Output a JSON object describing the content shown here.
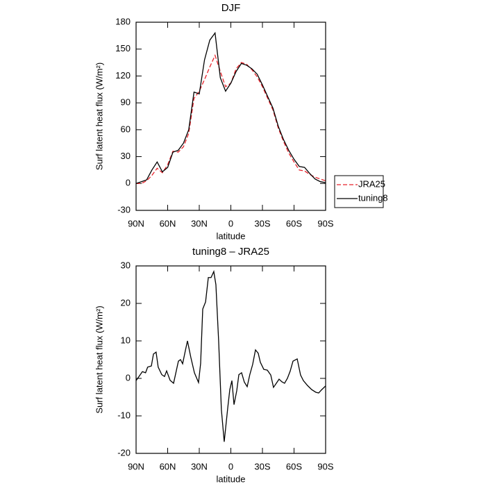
{
  "chart_data": [
    {
      "type": "line",
      "title": "DJF",
      "x_label": "latitude",
      "y_label": "Surf latent heat flux (W/m²)",
      "x": [
        90,
        85,
        80,
        75,
        70,
        65,
        60,
        55,
        50,
        45,
        40,
        35,
        30,
        25,
        20,
        15,
        10,
        5,
        0,
        -5,
        -10,
        -15,
        -20,
        -25,
        -30,
        -35,
        -40,
        -45,
        -50,
        -55,
        -60,
        -65,
        -70,
        -75,
        -80,
        -85,
        -90
      ],
      "series": [
        {
          "name": "JRA25",
          "color": "#e8222a",
          "line_style": "dashed",
          "values": [
            0,
            0,
            3,
            9,
            17,
            12,
            21,
            36,
            35,
            41,
            56,
            95,
            103,
            116,
            130,
            143,
            125,
            108,
            112,
            128,
            135,
            133,
            127,
            119,
            108,
            95,
            82,
            62,
            47,
            34,
            24,
            15,
            14,
            10,
            7,
            5,
            3
          ]
        },
        {
          "name": "tuning8",
          "color": "#000000",
          "line_style": "solid",
          "values": [
            0,
            2,
            4,
            15,
            24,
            13,
            18,
            35,
            37,
            45,
            60,
            102,
            100,
            138,
            160,
            168,
            118,
            103,
            112,
            125,
            134,
            132,
            128,
            122,
            110,
            97,
            84,
            64,
            49,
            37,
            27,
            19,
            18,
            11,
            5,
            2,
            1
          ]
        }
      ],
      "xlim": [
        90,
        -90
      ],
      "xticks": [
        {
          "value": 90,
          "label": "90N"
        },
        {
          "value": 60,
          "label": "60N"
        },
        {
          "value": 30,
          "label": "30N"
        },
        0,
        {
          "value": -30,
          "label": "30S"
        },
        {
          "value": -60,
          "label": "60S"
        },
        {
          "value": -90,
          "label": "90S"
        }
      ],
      "ylim": [
        -30,
        180
      ],
      "yticks": [
        -30,
        0,
        30,
        60,
        90,
        120,
        150,
        180
      ],
      "legend": "right"
    },
    {
      "type": "line",
      "title": "tuning8 – JRA25",
      "x_label": "latitude",
      "y_label": "Surf latent heat flux (W/m²)",
      "x": [
        90,
        84,
        81,
        79,
        75.5,
        73.5,
        71,
        69,
        65.6,
        63,
        61,
        57.7,
        54.4,
        49.8,
        47.8,
        45.8,
        43.2,
        41.2,
        38,
        34.6,
        30.7,
        28.7,
        26.7,
        24,
        21.4,
        18.8,
        16.2,
        14.2,
        11.6,
        9,
        6.3,
        3,
        1,
        -1,
        -3,
        -5.6,
        -7.6,
        -10.2,
        -12.8,
        -15.5,
        -18,
        -20.7,
        -23.4,
        -26,
        -28,
        -31.3,
        -34.6,
        -37.9,
        -40.5,
        -43.2,
        -45.8,
        -48.4,
        -51,
        -53.7,
        -56.3,
        -59,
        -63,
        -66.2,
        -68.9,
        -72.8,
        -76.8,
        -80.7,
        -83.4,
        -86,
        -90
      ],
      "series": [
        {
          "name": "tuning8 – JRA25",
          "color": "#000000",
          "line_style": "solid",
          "values": [
            -0.6,
            1.8,
            1.5,
            3,
            3.3,
            6.5,
            7,
            3,
            1,
            0.5,
            2,
            -0.5,
            -1.3,
            4.6,
            5,
            3.9,
            7.4,
            10,
            5.6,
            1.5,
            -1.1,
            4,
            18.5,
            20.4,
            26.9,
            26.9,
            28.5,
            25,
            10,
            -8.3,
            -16.9,
            -8,
            -3,
            -0.6,
            -7,
            -3.3,
            1,
            1.5,
            -1,
            -2.2,
            1,
            3.7,
            7.6,
            6.7,
            4.3,
            2.4,
            2.2,
            0.9,
            -2.4,
            -1.3,
            -0.2,
            -0.9,
            -1.3,
            0,
            1.9,
            4.6,
            5.2,
            0.9,
            -0.6,
            -1.9,
            -3,
            -3.7,
            -3.9,
            -3.1,
            -2
          ]
        }
      ],
      "xlim": [
        90,
        -90
      ],
      "xticks": [
        {
          "value": 90,
          "label": "90N"
        },
        {
          "value": 60,
          "label": "60N"
        },
        {
          "value": 30,
          "label": "30N"
        },
        0,
        {
          "value": -30,
          "label": "30S"
        },
        {
          "value": -60,
          "label": "60S"
        },
        {
          "value": -90,
          "label": "90S"
        }
      ],
      "ylim": [
        -20,
        30
      ],
      "yticks": [
        -20,
        -10,
        0,
        10,
        20,
        30
      ]
    }
  ]
}
